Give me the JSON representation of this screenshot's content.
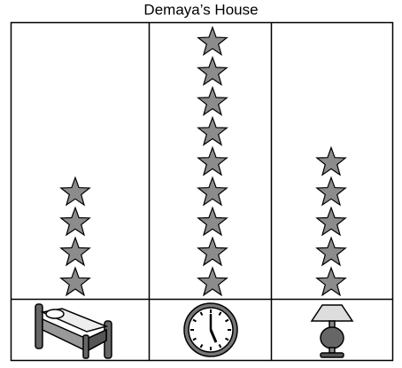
{
  "chart_data": {
    "type": "pictograph",
    "title": "Demaya’s House",
    "categories": [
      null,
      null,
      null
    ],
    "values": [
      4,
      9,
      5
    ],
    "color": "#8c8c8c"
  }
}
